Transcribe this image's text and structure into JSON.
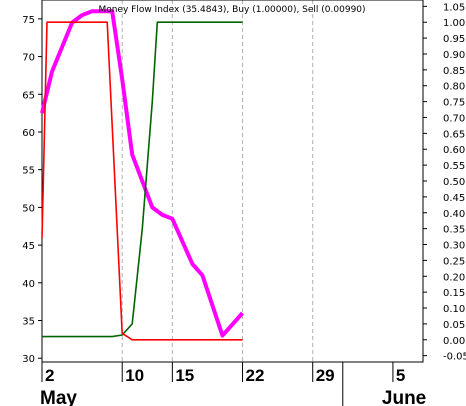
{
  "chart_data": {
    "type": "line",
    "title": "Money Flow Index (35.4843), Buy (1.00000), Sell (0.00990)",
    "left_axis": {
      "ticks": [
        30,
        35,
        40,
        45,
        50,
        55,
        60,
        65,
        70,
        75
      ],
      "ylim": [
        29.5,
        77.5
      ]
    },
    "right_axis": {
      "ticks": [
        "-0.05",
        "0.00",
        "0.05",
        "0.10",
        "0.15",
        "0.20",
        "0.25",
        "0.30",
        "0.35",
        "0.40",
        "0.45",
        "0.50",
        "0.55",
        "0.60",
        "0.65",
        "0.70",
        "0.75",
        "0.80",
        "0.85",
        "0.90",
        "0.95",
        "1.00",
        "1.05"
      ],
      "ylim": [
        -0.07,
        1.07
      ]
    },
    "x_ticks": [
      {
        "label": "2",
        "day": 2
      },
      {
        "label": "10",
        "day": 10
      },
      {
        "label": "15",
        "day": 15
      },
      {
        "label": "22",
        "day": 22
      },
      {
        "label": "29",
        "day": 29
      },
      {
        "label": "June",
        "day": 32,
        "month": true
      },
      {
        "label": "5",
        "day": 37
      }
    ],
    "month_labels": [
      {
        "label": "May",
        "day": 2
      },
      {
        "label": "June",
        "day": 36
      }
    ],
    "gridline_days": [
      10,
      15,
      22,
      29
    ],
    "xlim": [
      2,
      40
    ],
    "series": [
      {
        "key": "mfi",
        "color": "#ff00ff",
        "axis": "left",
        "points": [
          [
            2,
            62.5
          ],
          [
            3,
            68
          ],
          [
            5,
            74.5
          ],
          [
            6,
            75.5
          ],
          [
            7,
            76
          ],
          [
            8,
            76
          ],
          [
            9,
            76
          ],
          [
            10,
            67
          ],
          [
            11,
            57
          ],
          [
            13,
            50
          ],
          [
            14,
            49
          ],
          [
            15,
            48.5
          ],
          [
            17,
            42.5
          ],
          [
            18,
            41
          ],
          [
            20,
            33
          ],
          [
            21,
            34.5
          ],
          [
            22,
            36
          ]
        ]
      },
      {
        "key": "buy",
        "color": "#006400",
        "axis": "right",
        "points": [
          [
            2,
            0.01
          ],
          [
            9,
            0.01
          ],
          [
            10,
            0.015
          ],
          [
            11,
            0.05
          ],
          [
            12,
            0.35
          ],
          [
            13,
            0.75
          ],
          [
            13.5,
            1.0
          ],
          [
            22,
            1.0
          ]
        ]
      },
      {
        "key": "sell",
        "color": "#ff0000",
        "axis": "right",
        "points": [
          [
            2,
            0.32
          ],
          [
            2.5,
            1.0
          ],
          [
            8.5,
            1.0
          ],
          [
            10,
            0.02
          ],
          [
            11,
            0.0
          ],
          [
            22,
            0.0
          ]
        ]
      }
    ]
  }
}
